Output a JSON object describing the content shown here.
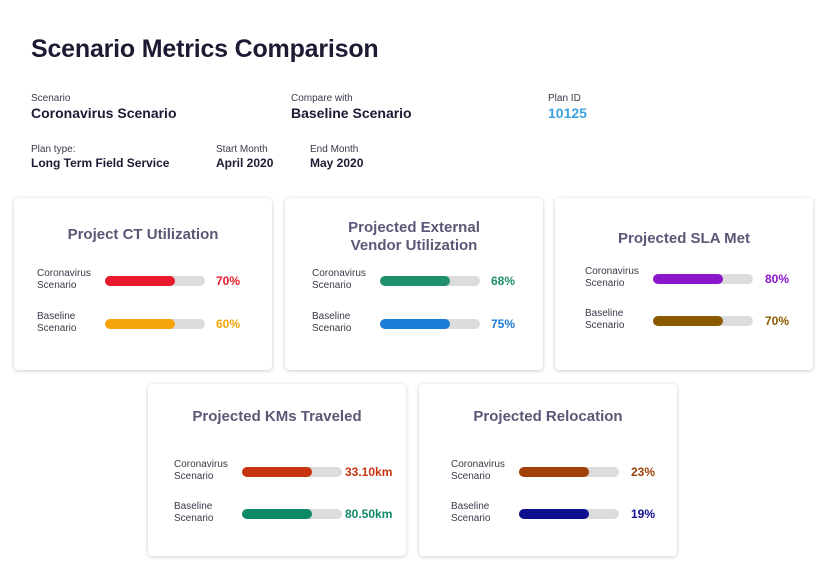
{
  "title": "Scenario Metrics Comparison",
  "scenario": {
    "label": "Scenario",
    "value": "Coronavirus Scenario"
  },
  "compare": {
    "label": "Compare with",
    "value": "Baseline Scenario"
  },
  "plan_id": {
    "label": "Plan ID",
    "value": "10125"
  },
  "plan_type": {
    "label": "Plan type:",
    "value": "Long Term Field Service"
  },
  "start_month": {
    "label": "Start Month",
    "value": "April 2020"
  },
  "end_month": {
    "label": "End Month",
    "value": "May 2020"
  },
  "cards": [
    {
      "title": "Project CT Utilization",
      "rows": [
        {
          "label": "Coronavirus Scenario",
          "value_text": "70%",
          "fraction": 0.7,
          "color": "#e8192c"
        },
        {
          "label": "Baseline Scenario",
          "value_text": "60%",
          "fraction": 0.7,
          "color": "#f5a50b"
        }
      ]
    },
    {
      "title": "Projected External Vendor Utilization",
      "rows": [
        {
          "label": "Coronavirus Scenario",
          "value_text": "68%",
          "fraction": 0.7,
          "color": "#1f8f6e"
        },
        {
          "label": "Baseline Scenario",
          "value_text": "75%",
          "fraction": 0.7,
          "color": "#1a7cd6"
        }
      ]
    },
    {
      "title": "Projected SLA Met",
      "rows": [
        {
          "label": "Coronavirus Scenario",
          "value_text": "80%",
          "fraction": 0.7,
          "color": "#8a17c9"
        },
        {
          "label": "Baseline Scenario",
          "value_text": "70%",
          "fraction": 0.7,
          "color": "#8a5a00"
        }
      ]
    },
    {
      "title": "Projected KMs Traveled",
      "rows": [
        {
          "label": "Coronavirus Scenario",
          "value_text": "33.10km",
          "fraction": 0.7,
          "color": "#c7340f"
        },
        {
          "label": "Baseline Scenario",
          "value_text": "80.50km",
          "fraction": 0.7,
          "color": "#0f8a69"
        }
      ]
    },
    {
      "title": "Projected Relocation",
      "rows": [
        {
          "label": "Coronavirus Scenario",
          "value_text": "23%",
          "fraction": 0.7,
          "color": "#9e4008"
        },
        {
          "label": "Baseline Scenario",
          "value_text": "19%",
          "fraction": 0.7,
          "color": "#0f0e8f"
        }
      ]
    }
  ],
  "colors": {
    "plan_id": "#3aa3dc",
    "card_title": "#5a5876",
    "track": "#dcdcdc"
  }
}
